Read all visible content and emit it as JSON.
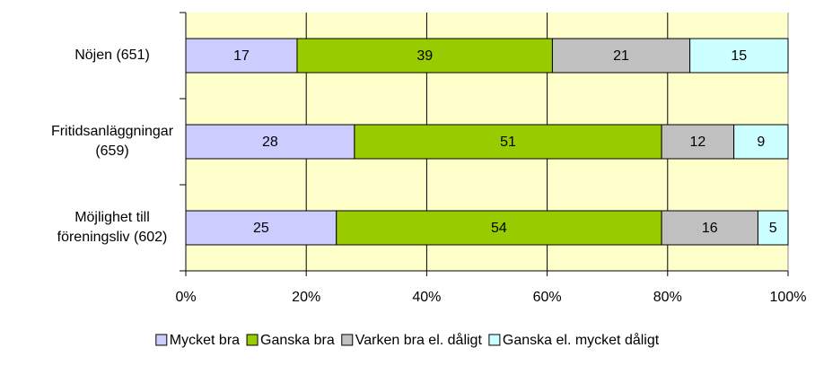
{
  "chart_data": {
    "type": "bar",
    "orientation": "horizontal",
    "stacked": "percent",
    "categories": [
      "Nöjen (651)",
      "Fritidsanläggningar\n(659)",
      "Möjlighet till\nföreningsliv (602)"
    ],
    "series": [
      {
        "name": "Mycket bra",
        "color": "#ccccff",
        "values": [
          17,
          28,
          25
        ]
      },
      {
        "name": "Ganska bra",
        "color": "#99cc00",
        "values": [
          39,
          51,
          54
        ]
      },
      {
        "name": "Varken bra el. dåligt",
        "color": "#c0c0c0",
        "values": [
          21,
          12,
          16
        ]
      },
      {
        "name": "Ganska el. mycket dåligt",
        "color": "#ccffff",
        "values": [
          15,
          9,
          5
        ]
      }
    ],
    "xlim": [
      0,
      100
    ],
    "xticks": [
      {
        "value": 0,
        "label": "0%"
      },
      {
        "value": 20,
        "label": "20%"
      },
      {
        "value": 40,
        "label": "40%"
      },
      {
        "value": 60,
        "label": "60%"
      },
      {
        "value": 80,
        "label": "80%"
      },
      {
        "value": 100,
        "label": "100%"
      }
    ],
    "grid": true,
    "legend": "bottom",
    "background": "#ffffcc"
  }
}
